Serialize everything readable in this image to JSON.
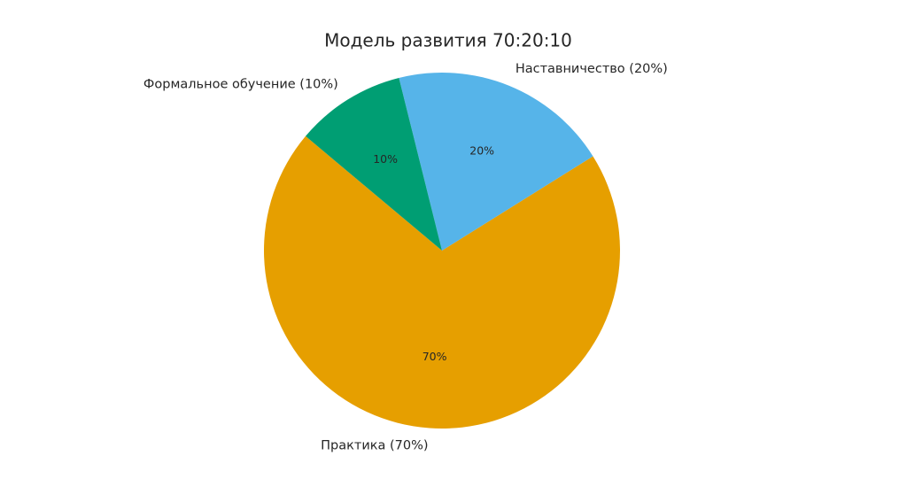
{
  "chart_data": {
    "type": "pie",
    "title": "Модель развития 70:20:10",
    "categories": [
      "Практика (70%)",
      "Наставничество (20%)",
      "Формальное обучение (10%)"
    ],
    "values": [
      70,
      20,
      10
    ],
    "value_labels": [
      "70%",
      "20%",
      "10%"
    ],
    "colors": [
      "#E69F00",
      "#56B4E9",
      "#009E73"
    ]
  }
}
